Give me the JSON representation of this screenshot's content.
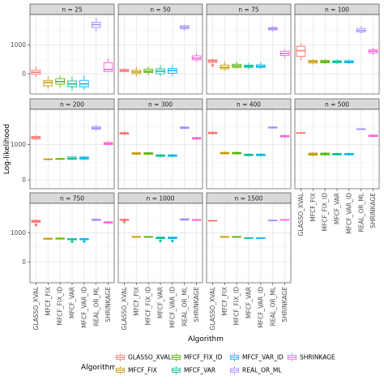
{
  "chart_data": {
    "type": "box",
    "xlabel": "Algorithm",
    "ylabel": "Log-likelihood",
    "legend_title": "Algorithm",
    "legend_position": "bottom",
    "grid": true,
    "facet_layout": {
      "ncol": 4,
      "nrow": 3
    },
    "categories": [
      "GLASSO_XVAL",
      "MFCF_FIX",
      "MFCF_FIX_ID",
      "MFCF_VAR",
      "MFCF_VAR_ID",
      "REAL_OR_ML",
      "SHRINKAGE"
    ],
    "colors": [
      "#F8766D",
      "#C49A00",
      "#53B400",
      "#00C094",
      "#00B6EB",
      "#A58AFF",
      "#FB61D7"
    ],
    "legend_items": [
      {
        "label": "GLASSO_XVAL",
        "color": "#F8766D"
      },
      {
        "label": "MFCF_FIX_ID",
        "color": "#53B400"
      },
      {
        "label": "MFCF_VAR_ID",
        "color": "#00B6EB"
      },
      {
        "label": "SHRINKAGE",
        "color": "#FB61D7"
      },
      {
        "label": "MFCF_FIX",
        "color": "#C49A00"
      },
      {
        "label": "MFCF_VAR",
        "color": "#00C094"
      },
      {
        "label": "REAL_OR_ML",
        "color": "#A58AFF"
      }
    ],
    "rows": [
      {
        "ylim": [
          -700,
          2050
        ],
        "yticks": [
          0,
          1000
        ]
      },
      {
        "ylim": [
          -250,
          2000
        ],
        "yticks": [
          0,
          1000
        ]
      },
      {
        "ylim": [
          -700,
          2000
        ],
        "yticks": [
          0,
          1000
        ]
      }
    ],
    "panels": [
      {
        "label": "n = 25",
        "boxes": [
          {
            "q": [
              -120,
              -20,
              50,
              120,
              250
            ]
          },
          {
            "q": [
              -520,
              -420,
              -300,
              -230,
              -80
            ]
          },
          {
            "q": [
              -480,
              -360,
              -270,
              -170,
              -60
            ]
          },
          {
            "q": [
              -580,
              -450,
              -350,
              -250,
              -100
            ]
          },
          {
            "q": [
              -560,
              -450,
              -350,
              -230,
              -50
            ]
          },
          {
            "q": [
              1450,
              1600,
              1700,
              1780,
              1950
            ]
          },
          {
            "q": [
              50,
              80,
              150,
              380,
              550
            ]
          }
        ]
      },
      {
        "label": "n = 50",
        "boxes": [
          {
            "q": [
              50,
              80,
              110,
              150,
              200
            ]
          },
          {
            "q": [
              -100,
              0,
              60,
              120,
              250
            ]
          },
          {
            "q": [
              -50,
              40,
              90,
              160,
              250
            ]
          },
          {
            "q": [
              -80,
              0,
              90,
              170,
              300
            ]
          },
          {
            "q": [
              -70,
              20,
              110,
              180,
              320
            ]
          },
          {
            "q": [
              1480,
              1560,
              1610,
              1660,
              1700
            ]
          },
          {
            "q": [
              400,
              480,
              540,
              620,
              730
            ]
          }
        ]
      },
      {
        "label": "n = 75",
        "boxes": [
          {
            "q": [
              350,
              390,
              440,
              480,
              520
            ],
            "outliers": [
              290
            ]
          },
          {
            "q": [
              100,
              170,
              220,
              300,
              420
            ]
          },
          {
            "q": [
              170,
              220,
              270,
              330,
              420
            ]
          },
          {
            "q": [
              150,
              220,
              260,
              300,
              390
            ]
          },
          {
            "q": [
              170,
              220,
              260,
              310,
              400
            ]
          },
          {
            "q": [
              1450,
              1520,
              1560,
              1600,
              1650
            ]
          },
          {
            "q": [
              550,
              630,
              700,
              780,
              860
            ]
          }
        ]
      },
      {
        "label": "n = 100",
        "boxes": [
          {
            "q": [
              450,
              600,
              800,
              950,
              1050
            ]
          },
          {
            "q": [
              320,
              370,
              420,
              460,
              500
            ]
          },
          {
            "q": [
              340,
              380,
              420,
              460,
              500
            ]
          },
          {
            "q": [
              340,
              380,
              420,
              450,
              500
            ]
          },
          {
            "q": [
              340,
              380,
              410,
              450,
              490
            ]
          },
          {
            "q": [
              1390,
              1450,
              1500,
              1570,
              1650
            ]
          },
          {
            "q": [
              640,
              720,
              780,
              830,
              900
            ]
          }
        ]
      },
      {
        "label": "n = 200",
        "boxes": [
          {
            "q": [
              1120,
              1160,
              1200,
              1230,
              1280
            ]
          },
          {
            "q": [
              565,
              575,
              585,
              595,
              605
            ]
          },
          {
            "q": [
              575,
              585,
              595,
              605,
              615
            ]
          },
          {
            "q": [
              560,
              585,
              610,
              650,
              680
            ]
          },
          {
            "q": [
              560,
              590,
              620,
              650,
              680
            ]
          },
          {
            "q": [
              1390,
              1440,
              1470,
              1510,
              1560
            ]
          },
          {
            "q": [
              960,
              1000,
              1030,
              1060,
              1100
            ]
          }
        ]
      },
      {
        "label": "n = 300",
        "boxes": [
          {
            "q": [
              1270,
              1300,
              1320,
              1340,
              1380
            ]
          },
          {
            "q": [
              710,
              730,
              750,
              770,
              800
            ]
          },
          {
            "q": [
              710,
              730,
              750,
              770,
              790
            ]
          },
          {
            "q": [
              640,
              670,
              690,
              710,
              740
            ]
          },
          {
            "q": [
              640,
              670,
              690,
              710,
              740
            ]
          },
          {
            "q": [
              1440,
              1460,
              1480,
              1500,
              1520
            ]
          },
          {
            "q": [
              1130,
              1160,
              1180,
              1200,
              1230
            ]
          }
        ]
      },
      {
        "label": "n = 400",
        "boxes": [
          {
            "q": [
              1280,
              1310,
              1330,
              1350,
              1380
            ]
          },
          {
            "q": [
              720,
              740,
              760,
              780,
              810
            ]
          },
          {
            "q": [
              720,
              740,
              760,
              780,
              810
            ]
          },
          {
            "q": [
              660,
              690,
              710,
              730,
              760
            ]
          },
          {
            "q": [
              660,
              690,
              710,
              730,
              760
            ]
          },
          {
            "q": [
              1450,
              1470,
              1480,
              1500,
              1520
            ]
          },
          {
            "q": [
              1190,
              1220,
              1240,
              1260,
              1290
            ]
          }
        ]
      },
      {
        "label": "n = 500",
        "boxes": [
          {
            "q": [
              1300,
              1320,
              1330,
              1340,
              1360
            ]
          },
          {
            "q": [
              670,
              700,
              730,
              760,
              790
            ]
          },
          {
            "q": [
              680,
              710,
              730,
              760,
              790
            ]
          },
          {
            "q": [
              690,
              710,
              730,
              750,
              770
            ]
          },
          {
            "q": [
              690,
              710,
              730,
              750,
              770
            ]
          },
          {
            "q": [
              1420,
              1430,
              1440,
              1450,
              1460
            ]
          },
          {
            "q": [
              1210,
              1230,
              1250,
              1270,
              1290
            ]
          }
        ]
      },
      {
        "label": "n = 750",
        "boxes": [
          {
            "q": [
              1300,
              1350,
              1390,
              1420,
              1460
            ],
            "outliers": [
              1260
            ]
          },
          {
            "q": [
              760,
              780,
              800,
              810,
              830
            ]
          },
          {
            "q": [
              770,
              785,
              800,
              815,
              830
            ]
          },
          {
            "q": [
              740,
              760,
              780,
              800,
              820
            ],
            "outliers": [
              700
            ]
          },
          {
            "q": [
              740,
              760,
              780,
              800,
              820
            ],
            "outliers": [
              700
            ]
          },
          {
            "q": [
              1390,
              1420,
              1440,
              1460,
              1490
            ]
          },
          {
            "q": [
              1310,
              1330,
              1350,
              1370,
              1390
            ]
          }
        ]
      },
      {
        "label": "n = 1000",
        "boxes": [
          {
            "q": [
              1390,
              1420,
              1440,
              1460,
              1490
            ],
            "outliers": [
              1370
            ]
          },
          {
            "q": [
              840,
              850,
              860,
              870,
              880
            ]
          },
          {
            "q": [
              840,
              850,
              860,
              870,
              880
            ]
          },
          {
            "q": [
              780,
              800,
              830,
              850,
              870
            ],
            "outliers": [
              720
            ]
          },
          {
            "q": [
              780,
              800,
              830,
              850,
              870
            ],
            "outliers": [
              720
            ]
          },
          {
            "q": [
              1410,
              1430,
              1450,
              1470,
              1490
            ]
          },
          {
            "q": [
              1400,
              1420,
              1440,
              1450,
              1470
            ]
          }
        ]
      },
      {
        "label": "n = 1500",
        "boxes": [
          {
            "q": [
              1390,
              1400,
              1410,
              1420,
              1430
            ]
          },
          {
            "q": [
              840,
              850,
              860,
              870,
              880
            ]
          },
          {
            "q": [
              840,
              850,
              860,
              870,
              880
            ]
          },
          {
            "q": [
              800,
              810,
              820,
              830,
              840
            ]
          },
          {
            "q": [
              800,
              810,
              820,
              830,
              840
            ]
          },
          {
            "q": [
              1400,
              1410,
              1420,
              1430,
              1440
            ]
          },
          {
            "q": [
              1420,
              1430,
              1440,
              1450,
              1460
            ]
          }
        ]
      }
    ]
  }
}
